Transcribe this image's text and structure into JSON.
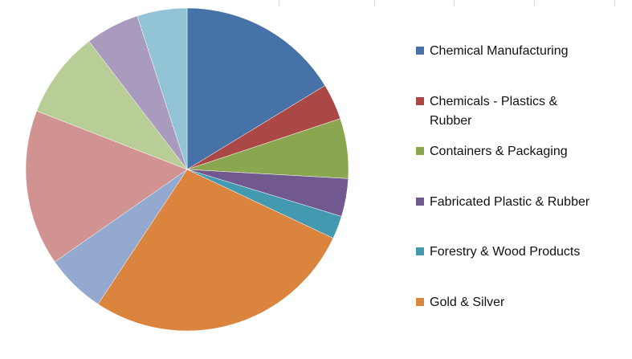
{
  "chart_data": {
    "type": "pie",
    "categories": [
      "Chemical Manufacturing",
      "Chemicals - Plastics & Rubber",
      "Containers & Packaging",
      "Fabricated Plastic & Rubber",
      "Forestry & Wood Products",
      "Gold & Silver",
      null,
      null,
      null,
      null,
      null
    ],
    "values": [
      16.3,
      3.6,
      6,
      3.8,
      2.3,
      27.3,
      6,
      15.6,
      8.7,
      5.4,
      5
    ],
    "colors": [
      "#4672a8",
      "#ab4744",
      "#8aa64f",
      "#71598f",
      "#4299b0",
      "#db843d",
      "#93a9d0",
      "#d19392",
      "#b9cd96",
      "#a99bbd",
      "#93c4d6"
    ],
    "legend": "right"
  }
}
